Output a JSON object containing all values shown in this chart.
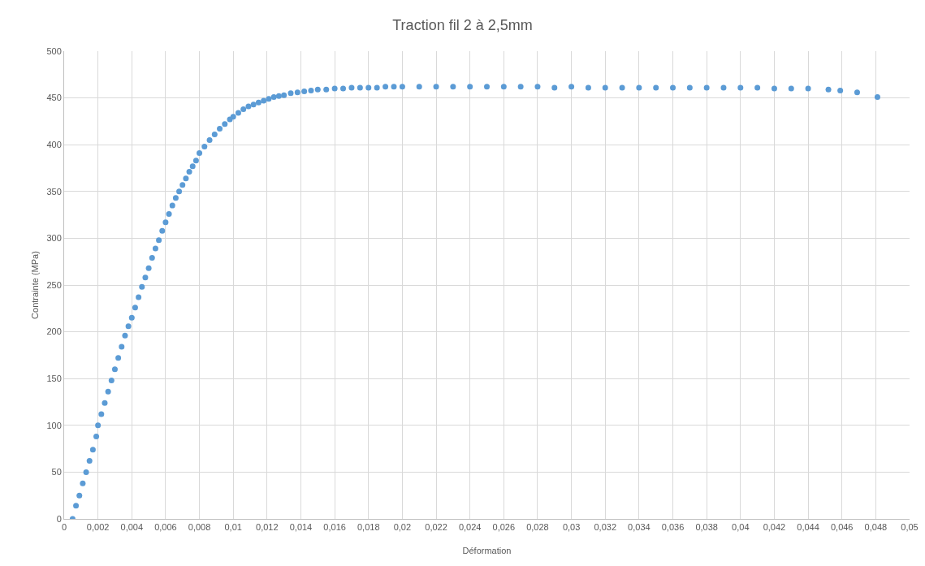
{
  "chart_data": {
    "type": "scatter",
    "title": "Traction fil 2 à 2,5mm",
    "xlabel": "Déformation",
    "ylabel": "Contrainte (MPa)",
    "x": [
      0.0005,
      0.0007,
      0.0009,
      0.0011,
      0.0013,
      0.0015,
      0.0017,
      0.0019,
      0.002,
      0.0022,
      0.0024,
      0.0026,
      0.0028,
      0.003,
      0.0032,
      0.0034,
      0.0036,
      0.0038,
      0.004,
      0.0042,
      0.0044,
      0.0046,
      0.0048,
      0.005,
      0.0052,
      0.0054,
      0.0056,
      0.0058,
      0.006,
      0.0062,
      0.0064,
      0.0066,
      0.0068,
      0.007,
      0.0072,
      0.0074,
      0.0076,
      0.0078,
      0.008,
      0.0083,
      0.0086,
      0.0089,
      0.0092,
      0.0095,
      0.0098,
      0.01,
      0.0103,
      0.0106,
      0.0109,
      0.0112,
      0.0115,
      0.0118,
      0.0121,
      0.0124,
      0.0127,
      0.013,
      0.0134,
      0.0138,
      0.0142,
      0.0146,
      0.015,
      0.0155,
      0.016,
      0.0165,
      0.017,
      0.0175,
      0.018,
      0.0185,
      0.019,
      0.0195,
      0.02,
      0.021,
      0.022,
      0.023,
      0.024,
      0.025,
      0.026,
      0.027,
      0.028,
      0.029,
      0.03,
      0.031,
      0.032,
      0.033,
      0.034,
      0.035,
      0.036,
      0.037,
      0.038,
      0.039,
      0.04,
      0.041,
      0.042,
      0.043,
      0.044,
      0.0452,
      0.0459,
      0.0469,
      0.0481
    ],
    "values": [
      0,
      14,
      25,
      38,
      50,
      62,
      74,
      88,
      100,
      112,
      124,
      136,
      148,
      160,
      172,
      184,
      196,
      206,
      215,
      226,
      237,
      248,
      258,
      268,
      279,
      289,
      298,
      308,
      317,
      326,
      335,
      343,
      350,
      357,
      364,
      371,
      377,
      383,
      391,
      398,
      405,
      411,
      417,
      422,
      427,
      430,
      434,
      438,
      441,
      443,
      445,
      447,
      449,
      451,
      452,
      453,
      455,
      456,
      457,
      458,
      459,
      459,
      460,
      460,
      461,
      461,
      461,
      461,
      462,
      462,
      462,
      462,
      462,
      462,
      462,
      462,
      462,
      462,
      462,
      461,
      462,
      461,
      461,
      461,
      461,
      461,
      461,
      461,
      461,
      461,
      461,
      461,
      460,
      460,
      460,
      459,
      458,
      456,
      451
    ],
    "color": "#5b9bd5",
    "marker": "circle",
    "xlim": [
      0,
      0.05
    ],
    "xticks": [
      0,
      {
        "value": 0.002,
        "label": "0,002"
      },
      {
        "value": 0.004,
        "label": "0,004"
      },
      {
        "value": 0.006,
        "label": "0,006"
      },
      {
        "value": 0.008,
        "label": "0,008"
      },
      {
        "value": 0.01,
        "label": "0,01"
      },
      {
        "value": 0.012,
        "label": "0,012"
      },
      {
        "value": 0.014,
        "label": "0,014"
      },
      {
        "value": 0.016,
        "label": "0,016"
      },
      {
        "value": 0.018,
        "label": "0,018"
      },
      {
        "value": 0.02,
        "label": "0,02"
      },
      {
        "value": 0.022,
        "label": "0,022"
      },
      {
        "value": 0.024,
        "label": "0,024"
      },
      {
        "value": 0.026,
        "label": "0,026"
      },
      {
        "value": 0.028,
        "label": "0,028"
      },
      {
        "value": 0.03,
        "label": "0,03"
      },
      {
        "value": 0.032,
        "label": "0,032"
      },
      {
        "value": 0.034,
        "label": "0,034"
      },
      {
        "value": 0.036,
        "label": "0,036"
      },
      {
        "value": 0.038,
        "label": "0,038"
      },
      {
        "value": 0.04,
        "label": "0,04"
      },
      {
        "value": 0.042,
        "label": "0,042"
      },
      {
        "value": 0.044,
        "label": "0,044"
      },
      {
        "value": 0.046,
        "label": "0,046"
      },
      {
        "value": 0.048,
        "label": "0,048"
      },
      {
        "value": 0.05,
        "label": "0,05"
      }
    ],
    "ylim": [
      0,
      500
    ],
    "yticks": [
      0,
      50,
      100,
      150,
      200,
      250,
      300,
      350,
      400,
      450,
      500
    ],
    "grid": true
  }
}
